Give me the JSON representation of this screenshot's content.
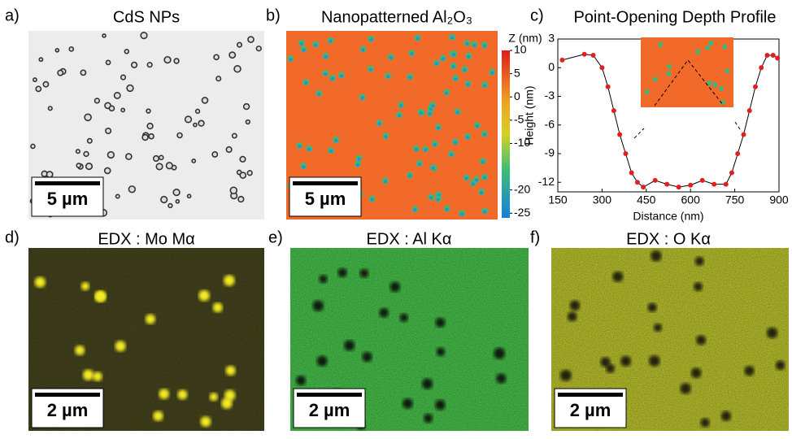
{
  "panels": [
    {
      "label": "a)",
      "title": "CdS NPs",
      "scale": "5 µm"
    },
    {
      "label": "b)",
      "title": "Nanopatterned Al₂O₃",
      "scale": "5 µm"
    },
    {
      "label": "c)"
    },
    {
      "label": "d)",
      "title": "EDX : Mo Mα",
      "scale": "2 µm"
    },
    {
      "label": "e)",
      "title": "EDX : Al Kα",
      "scale": "2 µm"
    },
    {
      "label": "f)",
      "title": "EDX : O Kα",
      "scale": "2 µm"
    }
  ],
  "chart_data": [
    {
      "type": "line",
      "title": "Point-Opening Depth Profile",
      "x_label": "Distance (nm)",
      "y_label": "Height (nm)",
      "x": [
        165,
        240,
        270,
        300,
        320,
        340,
        360,
        380,
        400,
        420,
        440,
        480,
        520,
        560,
        600,
        640,
        680,
        720,
        740,
        760,
        780,
        800,
        820,
        840,
        860,
        880,
        895
      ],
      "series": [
        {
          "color": "#e02020",
          "values": [
            0.8,
            1.4,
            1.3,
            0,
            -2,
            -4.5,
            -7,
            -9,
            -11,
            -12,
            -12.5,
            -11.8,
            -12.2,
            -12.5,
            -12.3,
            -11.8,
            -12.2,
            -12.2,
            -11,
            -9,
            -7,
            -4.5,
            -2,
            0,
            1.3,
            1.3,
            1.0
          ]
        }
      ],
      "xlim": [
        150,
        900
      ],
      "xticks": [
        150,
        300,
        450,
        600,
        750,
        900
      ],
      "ylim": [
        -13,
        3
      ],
      "yticks": [
        3,
        0,
        -3,
        -6,
        -9,
        -12
      ]
    },
    {
      "type": "colorbar",
      "title": "Z (nm)",
      "ylim": [
        -26,
        10
      ],
      "yticks": [
        10,
        5,
        0,
        -5,
        -10,
        -20,
        -25
      ]
    }
  ]
}
